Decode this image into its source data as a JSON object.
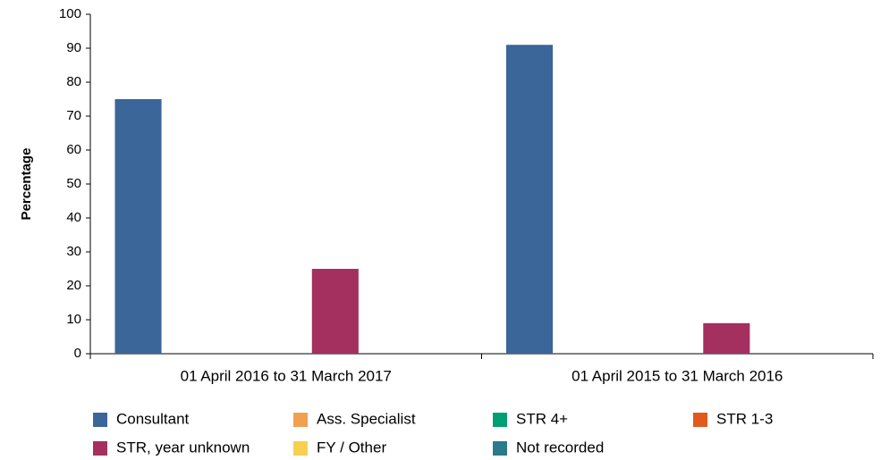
{
  "chart_data": {
    "type": "bar",
    "y_label": "Percentage",
    "categories": [
      "01 April 2016 to 31 March 2017",
      "01 April 2015 to 31 March 2016"
    ],
    "series": [
      {
        "name": "Consultant",
        "color": "#3a6699",
        "values": [
          75,
          91
        ]
      },
      {
        "name": "Ass. Specialist",
        "color": "#f0a050",
        "values": [
          0,
          0
        ]
      },
      {
        "name": "STR 4+",
        "color": "#009e73",
        "values": [
          0,
          0
        ]
      },
      {
        "name": "STR 1-3",
        "color": "#e05a1e",
        "values": [
          0,
          0
        ]
      },
      {
        "name": "STR, year unknown",
        "color": "#a3305f",
        "values": [
          25,
          9
        ]
      },
      {
        "name": "FY / Other",
        "color": "#f8d050",
        "values": [
          0,
          0
        ]
      },
      {
        "name": "Not recorded",
        "color": "#2a7a8a",
        "values": [
          0,
          0
        ]
      }
    ],
    "ylim": [
      0,
      100
    ],
    "yticks": [
      0,
      10,
      20,
      30,
      40,
      50,
      60,
      70,
      80,
      90,
      100
    ],
    "legend": "bottom"
  }
}
